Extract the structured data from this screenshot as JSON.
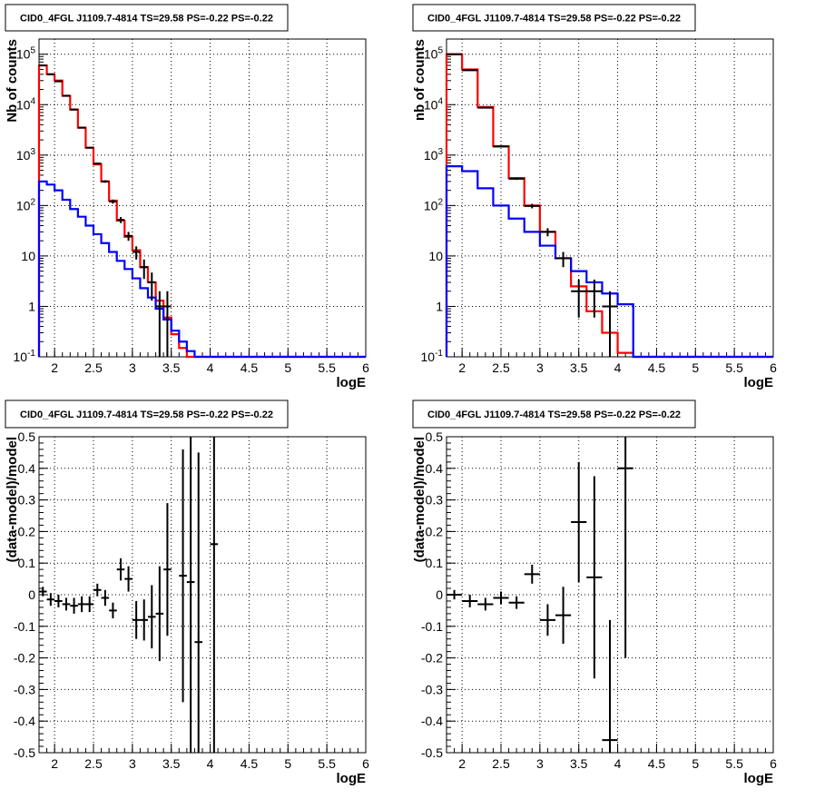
{
  "background": "#ffffff",
  "colors": {
    "data": "#000000",
    "model_total": "#ff0000",
    "model_bkg": "#0000ff",
    "grid": "#000000"
  },
  "chart_data": [
    {
      "type": "line",
      "title": "CID0_4FGL J1109.7-4814 TS=29.58 PS=-0.22 PS=-0.22",
      "xlabel": "logE",
      "ylabel": "Nb of counts",
      "xlim": [
        1.8,
        6.0
      ],
      "ylim": [
        0.1,
        200000
      ],
      "log_y": true,
      "grid": true,
      "x_ticks": [
        "2",
        "2.5",
        "3",
        "3.5",
        "4",
        "4.5",
        "5",
        "5.5",
        "6"
      ],
      "y_ticks": [
        "10^-1",
        "1",
        "10",
        "10^2",
        "10^3",
        "10^4",
        "10^5"
      ],
      "bin_edges": [
        1.8,
        1.9,
        2.0,
        2.1,
        2.2,
        2.3,
        2.4,
        2.5,
        2.6,
        2.7,
        2.8,
        2.9,
        3.0,
        3.1,
        3.2,
        3.3,
        3.4,
        3.5,
        3.6,
        3.7,
        3.8,
        3.9,
        4.0,
        4.1,
        4.2,
        4.3,
        4.4,
        4.5,
        4.6,
        4.7,
        4.8,
        4.9,
        5.0,
        5.1,
        5.2,
        5.3,
        5.4,
        5.5,
        5.6,
        5.7,
        5.8,
        5.9,
        6.0
      ],
      "series": [
        {
          "name": "model total",
          "color": "#ff0000",
          "values": [
            60000,
            40000,
            30000,
            15000,
            8000,
            3500,
            1400,
            650,
            300,
            125,
            50,
            24,
            13,
            6,
            3,
            1.3,
            0.6,
            0.28,
            0.15,
            0.1,
            0.1,
            0.1,
            0.1,
            0.1,
            0.1,
            0.1,
            0.1,
            0.1,
            0.1,
            0.1,
            0.1,
            0.1,
            0.1,
            0.1,
            0.1,
            0.1,
            0.1,
            0.1,
            0.1,
            0.1,
            0.1,
            0.1
          ]
        },
        {
          "name": "model background",
          "color": "#0000ff",
          "values": [
            300,
            260,
            200,
            130,
            85,
            60,
            40,
            27,
            18,
            12,
            8,
            5.5,
            3.6,
            2.3,
            1.5,
            0.9,
            0.55,
            0.33,
            0.2,
            0.13,
            0.1,
            0.1,
            0.1,
            0.1,
            0.1,
            0.1,
            0.1,
            0.1,
            0.1,
            0.1,
            0.1,
            0.1,
            0.1,
            0.1,
            0.1,
            0.1,
            0.1,
            0.1,
            0.1,
            0.1,
            0.1,
            0.1
          ]
        }
      ],
      "points": [
        {
          "x": 1.85,
          "y": 60000,
          "err": 250
        },
        {
          "x": 1.95,
          "y": 40000,
          "err": 200
        },
        {
          "x": 2.05,
          "y": 29000,
          "err": 170
        },
        {
          "x": 2.15,
          "y": 15000,
          "err": 120
        },
        {
          "x": 2.25,
          "y": 8000,
          "err": 90
        },
        {
          "x": 2.35,
          "y": 3500,
          "err": 60
        },
        {
          "x": 2.45,
          "y": 1400,
          "err": 37
        },
        {
          "x": 2.55,
          "y": 680,
          "err": 26
        },
        {
          "x": 2.65,
          "y": 300,
          "err": 17
        },
        {
          "x": 2.75,
          "y": 120,
          "err": 11
        },
        {
          "x": 2.85,
          "y": 52,
          "err": 7
        },
        {
          "x": 2.95,
          "y": 25,
          "err": 5
        },
        {
          "x": 3.05,
          "y": 12,
          "err": 3.5
        },
        {
          "x": 3.15,
          "y": 6,
          "err": 2.5
        },
        {
          "x": 3.25,
          "y": 3,
          "err": 1.7
        },
        {
          "x": 3.35,
          "y": 1,
          "err": 1
        },
        {
          "x": 3.45,
          "y": 1,
          "err": 1
        }
      ]
    },
    {
      "type": "line",
      "title": "CID0_4FGL J1109.7-4814 TS=29.58 PS=-0.22 PS=-0.22",
      "xlabel": "logE",
      "ylabel": "nb of counts",
      "xlim": [
        1.8,
        6.0
      ],
      "ylim": [
        0.1,
        200000
      ],
      "log_y": true,
      "grid": true,
      "x_ticks": [
        "2",
        "2.5",
        "3",
        "3.5",
        "4",
        "4.5",
        "5",
        "5.5",
        "6"
      ],
      "y_ticks": [
        "10^-1",
        "1",
        "10",
        "10^2",
        "10^3",
        "10^4",
        "10^5"
      ],
      "bin_edges": [
        1.8,
        2.0,
        2.2,
        2.4,
        2.6,
        2.8,
        3.0,
        3.2,
        3.4,
        3.6,
        3.8,
        4.0,
        4.2,
        4.4,
        4.6,
        4.8,
        5.0,
        5.2,
        5.4,
        5.6,
        5.8,
        6.0
      ],
      "series": [
        {
          "name": "model total",
          "color": "#ff0000",
          "values": [
            100000,
            50000,
            9000,
            1500,
            350,
            100,
            30,
            9,
            2.5,
            0.8,
            0.3,
            0.12,
            0.1,
            0.1,
            0.1,
            0.1,
            0.1,
            0.1,
            0.1,
            0.1,
            0.1
          ]
        },
        {
          "name": "model background",
          "color": "#0000ff",
          "values": [
            600,
            480,
            220,
            100,
            55,
            30,
            16,
            9,
            5,
            3,
            1.8,
            1.1,
            0.1,
            0.1,
            0.1,
            0.1,
            0.1,
            0.1,
            0.1,
            0.1,
            0.1
          ]
        }
      ],
      "points": [
        {
          "x": 1.9,
          "y": 100000,
          "err": 320
        },
        {
          "x": 2.1,
          "y": 48000,
          "err": 220
        },
        {
          "x": 2.3,
          "y": 8700,
          "err": 93
        },
        {
          "x": 2.5,
          "y": 1480,
          "err": 38
        },
        {
          "x": 2.7,
          "y": 340,
          "err": 18
        },
        {
          "x": 2.9,
          "y": 98,
          "err": 10
        },
        {
          "x": 3.1,
          "y": 30,
          "err": 5.5
        },
        {
          "x": 3.3,
          "y": 9,
          "err": 3
        },
        {
          "x": 3.5,
          "y": 2,
          "err": 1.4
        },
        {
          "x": 3.7,
          "y": 2,
          "err": 1.4
        },
        {
          "x": 3.9,
          "y": 1,
          "err": 1
        }
      ]
    },
    {
      "type": "scatter",
      "title": "CID0_4FGL J1109.7-4814 TS=29.58 PS=-0.22 PS=-0.22",
      "xlabel": "logE",
      "ylabel": "(data-model)/model",
      "xlim": [
        1.8,
        6.0
      ],
      "ylim": [
        -0.5,
        0.5
      ],
      "grid": true,
      "x_ticks": [
        "2",
        "2.5",
        "3",
        "3.5",
        "4",
        "4.5",
        "5",
        "5.5",
        "6"
      ],
      "y_ticks": [
        "-0.5",
        "-0.4",
        "-0.3",
        "-0.2",
        "-0.1",
        "0",
        "0.1",
        "0.2",
        "0.3",
        "0.4",
        "0.5"
      ],
      "xerr": 0.05,
      "points": [
        {
          "x": 1.85,
          "y": 0.01,
          "err": 0.015
        },
        {
          "x": 1.95,
          "y": -0.015,
          "err": 0.02
        },
        {
          "x": 2.05,
          "y": -0.02,
          "err": 0.02
        },
        {
          "x": 2.15,
          "y": -0.03,
          "err": 0.02
        },
        {
          "x": 2.25,
          "y": -0.035,
          "err": 0.025
        },
        {
          "x": 2.35,
          "y": -0.03,
          "err": 0.025
        },
        {
          "x": 2.45,
          "y": -0.03,
          "err": 0.025
        },
        {
          "x": 2.55,
          "y": 0.015,
          "err": 0.02
        },
        {
          "x": 2.65,
          "y": -0.01,
          "err": 0.025
        },
        {
          "x": 2.75,
          "y": -0.05,
          "err": 0.025
        },
        {
          "x": 2.85,
          "y": 0.08,
          "err": 0.035
        },
        {
          "x": 2.95,
          "y": 0.05,
          "err": 0.04
        },
        {
          "x": 3.05,
          "y": -0.08,
          "err": 0.06
        },
        {
          "x": 3.15,
          "y": -0.08,
          "err": 0.065
        },
        {
          "x": 3.25,
          "y": -0.07,
          "err": 0.1
        },
        {
          "x": 3.35,
          "y": -0.06,
          "err": 0.15
        },
        {
          "x": 3.45,
          "y": 0.08,
          "err": 0.21
        },
        {
          "x": 3.65,
          "y": 0.06,
          "err": 0.4
        },
        {
          "x": 3.75,
          "y": 0.04,
          "err": 0.55
        },
        {
          "x": 3.85,
          "y": -0.15,
          "err": 0.6
        },
        {
          "x": 4.05,
          "y": 0.16,
          "err": 0.9
        }
      ]
    },
    {
      "type": "scatter",
      "title": "CID0_4FGL J1109.7-4814 TS=29.58 PS=-0.22 PS=-0.22",
      "xlabel": "logE",
      "ylabel": "(data-model)/model",
      "xlim": [
        1.8,
        6.0
      ],
      "ylim": [
        -0.5,
        0.5
      ],
      "grid": true,
      "x_ticks": [
        "2",
        "2.5",
        "3",
        "3.5",
        "4",
        "4.5",
        "5",
        "5.5",
        "6"
      ],
      "y_ticks": [
        "-0.5",
        "-0.4",
        "-0.3",
        "-0.2",
        "-0.1",
        "0",
        "0.1",
        "0.2",
        "0.3",
        "0.4",
        "0.5"
      ],
      "xerr": 0.1,
      "points": [
        {
          "x": 1.9,
          "y": 0.0,
          "err": 0.015
        },
        {
          "x": 2.1,
          "y": -0.02,
          "err": 0.02
        },
        {
          "x": 2.3,
          "y": -0.03,
          "err": 0.02
        },
        {
          "x": 2.5,
          "y": -0.01,
          "err": 0.02
        },
        {
          "x": 2.7,
          "y": -0.025,
          "err": 0.02
        },
        {
          "x": 2.9,
          "y": 0.065,
          "err": 0.03
        },
        {
          "x": 3.1,
          "y": -0.08,
          "err": 0.05
        },
        {
          "x": 3.3,
          "y": -0.065,
          "err": 0.09
        },
        {
          "x": 3.5,
          "y": 0.23,
          "err": 0.19
        },
        {
          "x": 3.7,
          "y": 0.055,
          "err": 0.32
        },
        {
          "x": 3.9,
          "y": -0.46,
          "err": 0.38
        },
        {
          "x": 4.1,
          "y": 0.4,
          "err": 0.6
        }
      ]
    }
  ]
}
